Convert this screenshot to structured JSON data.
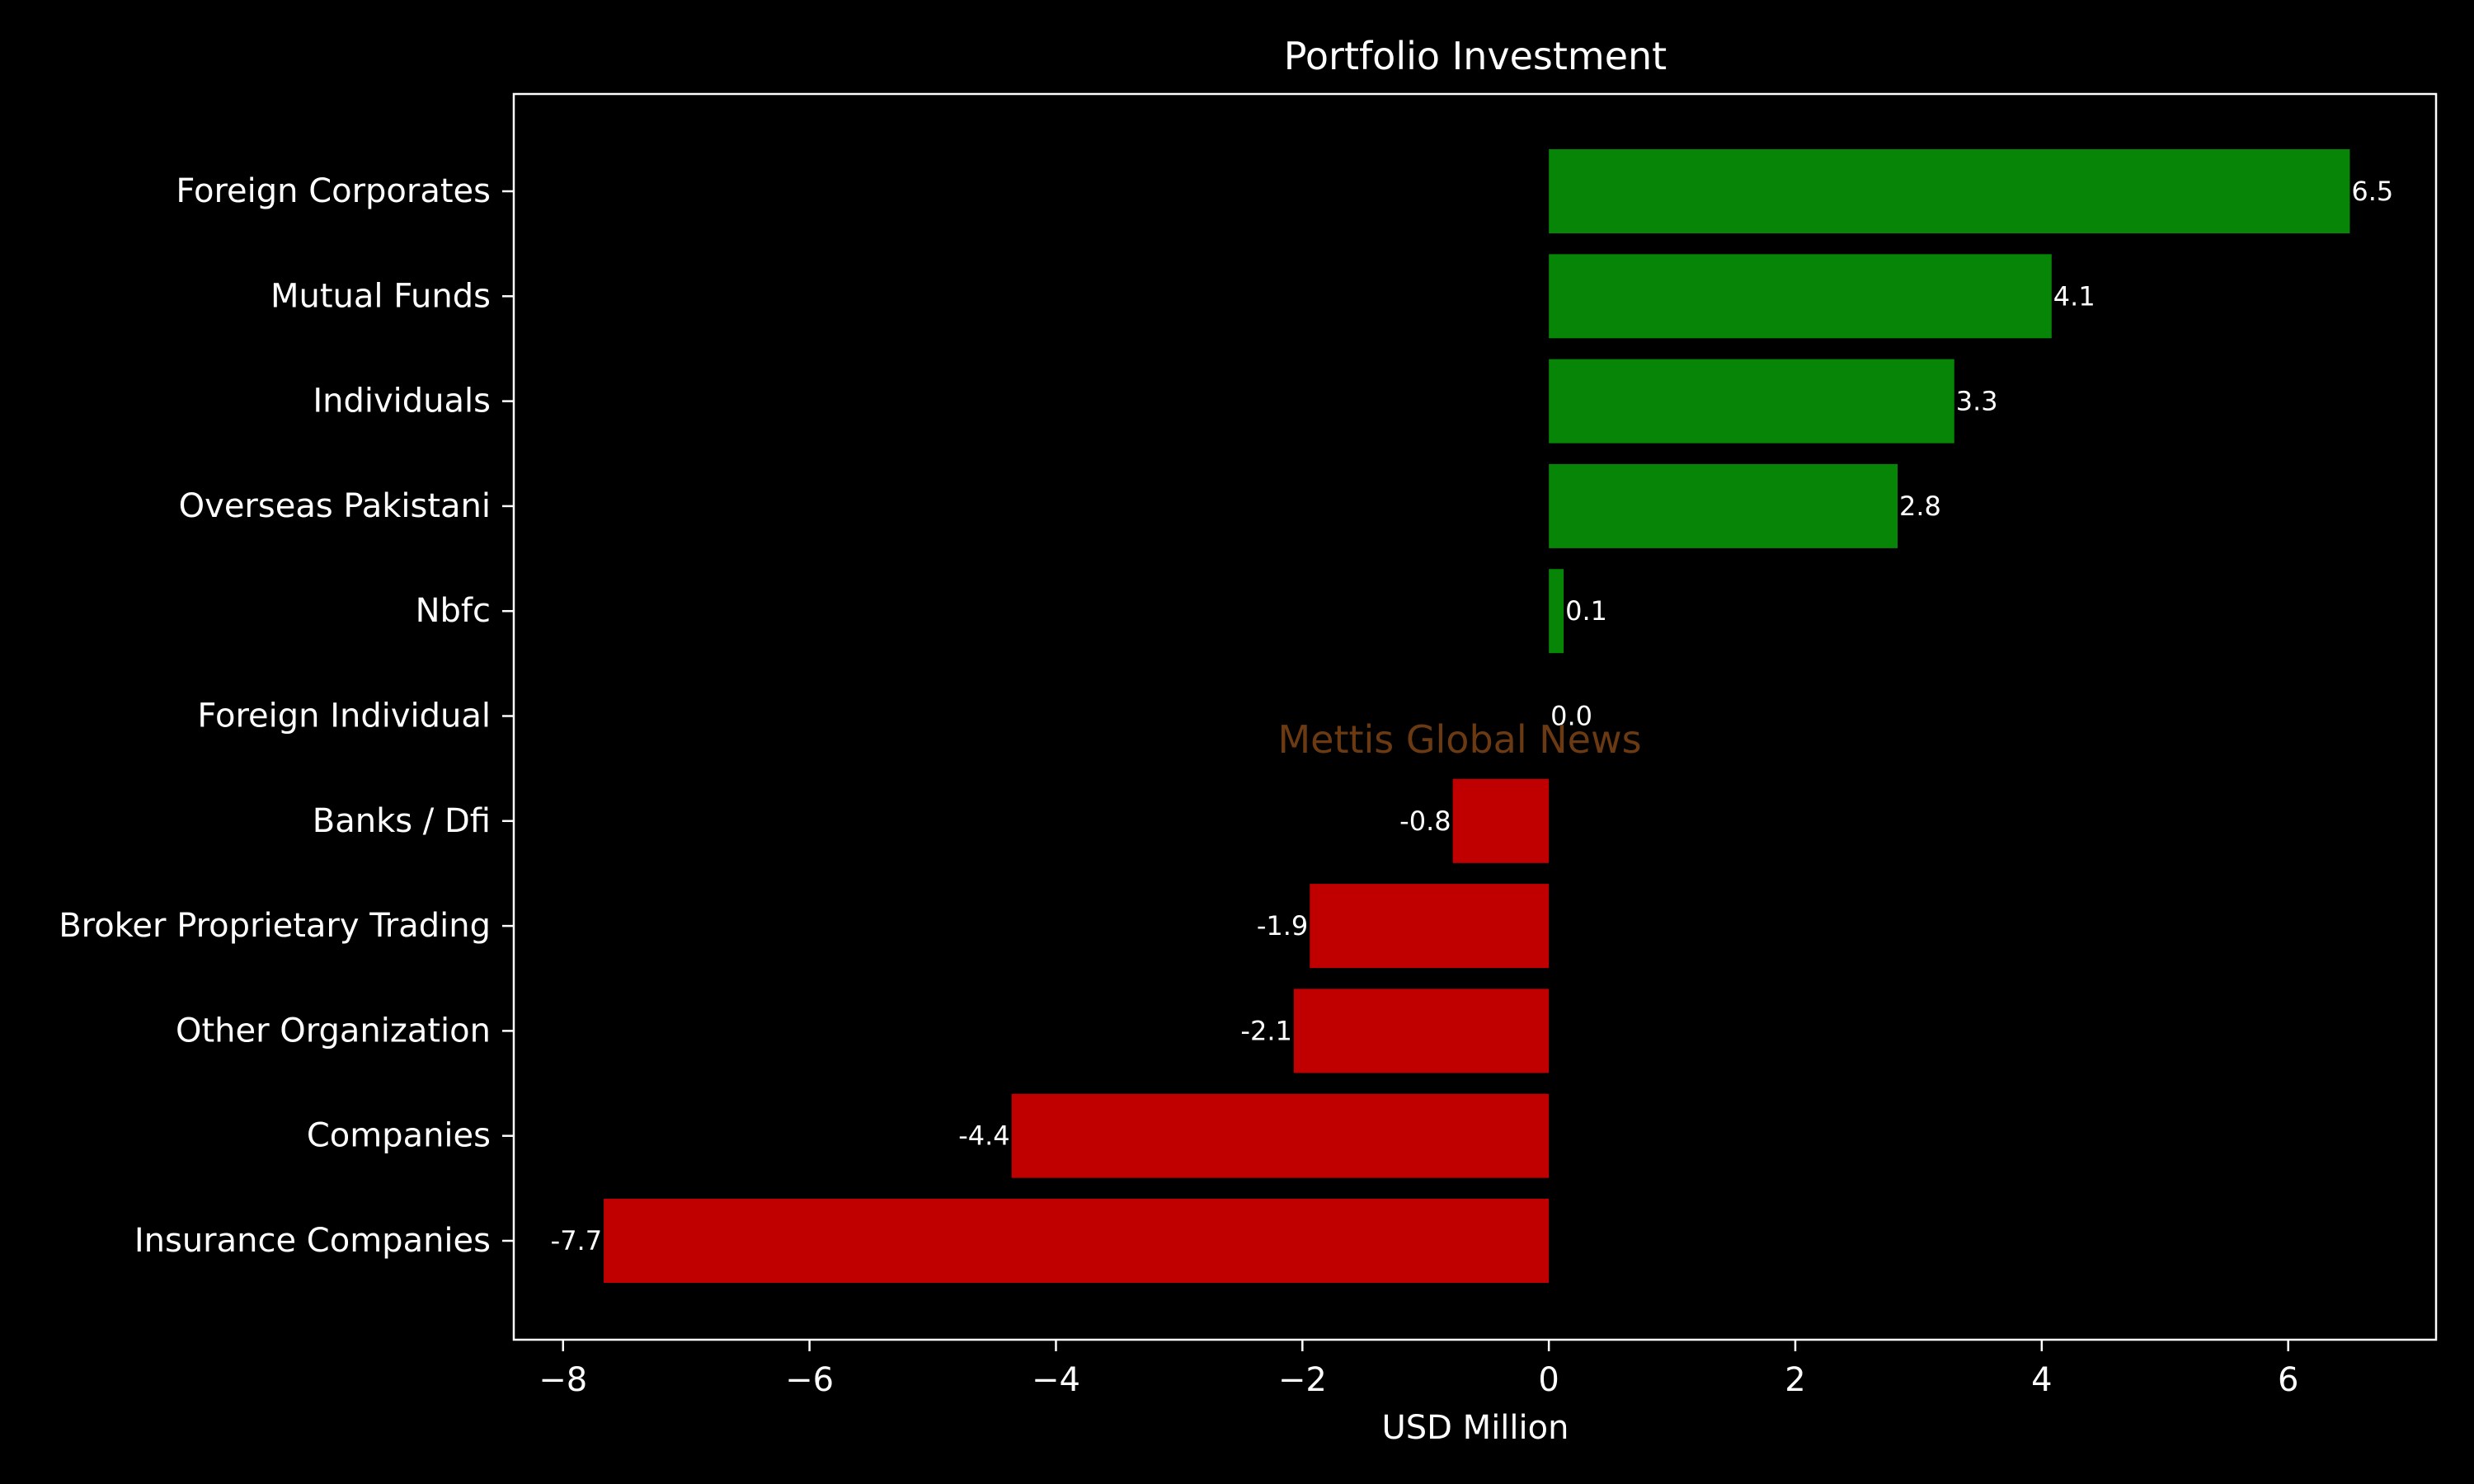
{
  "chart_data": {
    "type": "bar",
    "orientation": "horizontal",
    "title": "Portfolio Investment",
    "xlabel": "USD Million",
    "ylabel": "",
    "watermark": "Mettis Global News",
    "xlim": [
      -8.4,
      7.2
    ],
    "xticks": [
      -8,
      -6,
      -4,
      -2,
      0,
      2,
      4,
      6
    ],
    "xtick_labels": [
      "−8",
      "−6",
      "−4",
      "−2",
      "0",
      "2",
      "4",
      "6"
    ],
    "grid": false,
    "categories": [
      "Foreign Corporates",
      "Mutual Funds",
      "Individuals",
      "Overseas Pakistani",
      "Nbfc",
      "Foreign Individual",
      "Banks / Dfi",
      "Broker Proprietary Trading",
      "Other Organization",
      "Companies",
      "Insurance Companies"
    ],
    "values": [
      6.5,
      4.08,
      3.29,
      2.83,
      0.12,
      0.0,
      -0.78,
      -1.94,
      -2.07,
      -4.36,
      -7.67
    ],
    "data_labels": [
      "6.5",
      "4.1",
      "3.3",
      "2.8",
      "0.1",
      "0.0",
      "-0.8",
      "-1.9",
      "-2.1",
      "-4.4",
      "-7.7"
    ],
    "colors": {
      "positive": "#078507",
      "negative": "#c00000",
      "background": "#000000",
      "foreground": "#ffffff",
      "watermark": "#6b3a12"
    }
  }
}
